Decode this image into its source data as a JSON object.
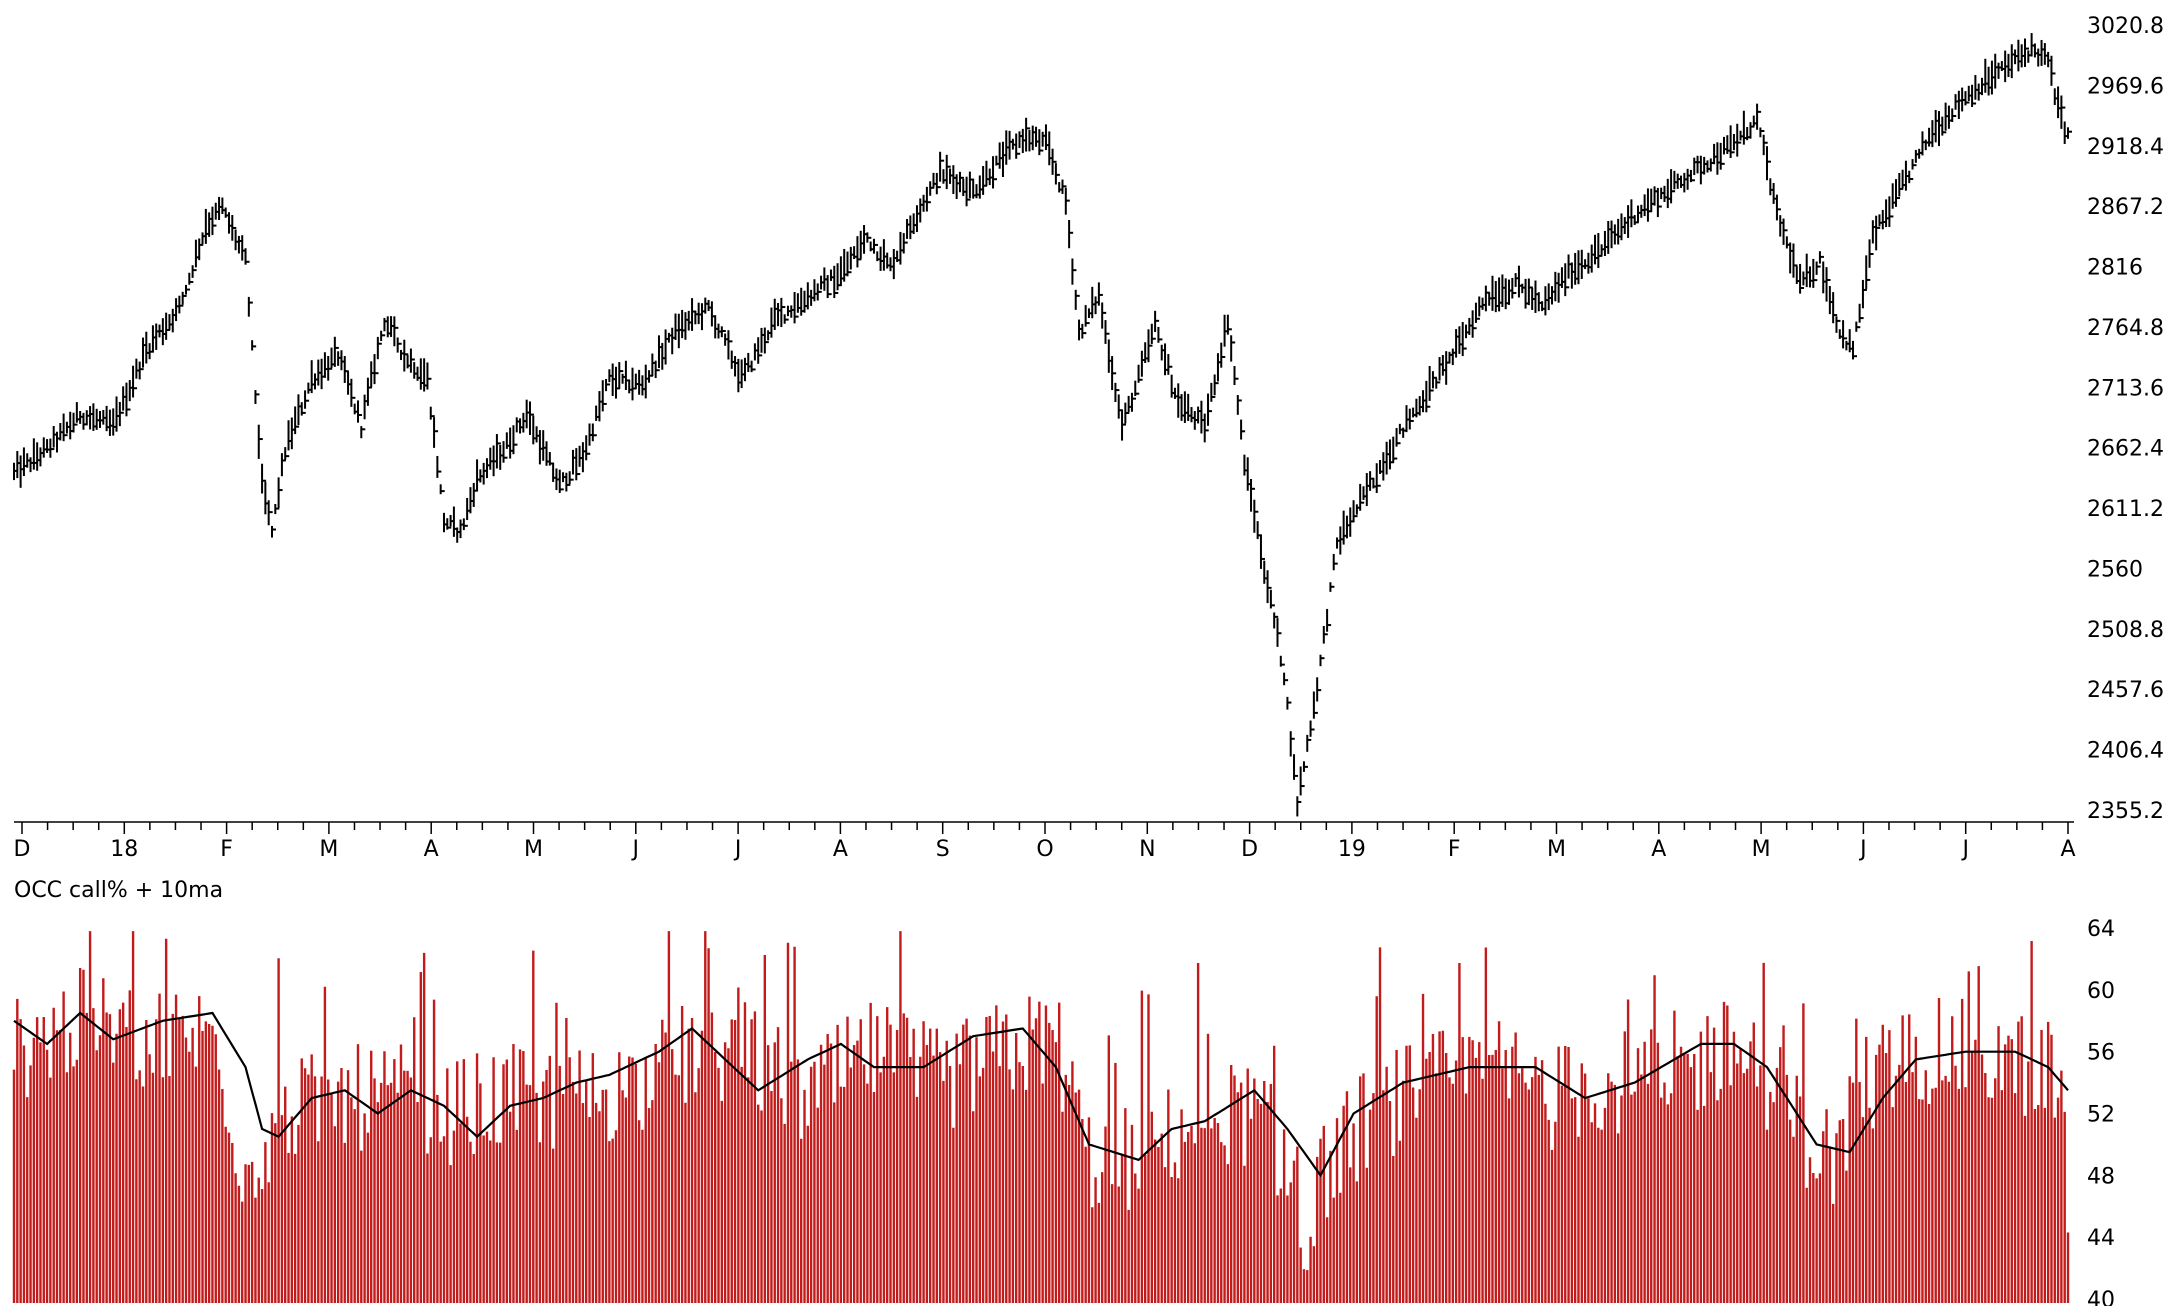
{
  "chart_data": [
    {
      "type": "ohlc",
      "series_sampling": "approximate daily highs/lows read from chart",
      "y_ticks": [
        "3020.8",
        "2969.6",
        "2918.4",
        "2867.2",
        "2816",
        "2764.8",
        "2713.6",
        "2662.4",
        "2611.2",
        "2560",
        "2508.8",
        "2457.6",
        "2406.4",
        "2355.2"
      ],
      "ylim": [
        2355.2,
        3020.8
      ],
      "x_month_labels": [
        "D",
        "18",
        "F",
        "M",
        "A",
        "M",
        "J",
        "J",
        "A",
        "S",
        "O",
        "N",
        "D",
        "19",
        "F",
        "M",
        "A",
        "M",
        "J",
        "J",
        "A"
      ],
      "keypoints": [
        [
          0,
          2640
        ],
        [
          10,
          2660
        ],
        [
          20,
          2690
        ],
        [
          30,
          2680
        ],
        [
          40,
          2745
        ],
        [
          50,
          2780
        ],
        [
          58,
          2850
        ],
        [
          63,
          2865
        ],
        [
          70,
          2820
        ],
        [
          75,
          2630
        ],
        [
          78,
          2590
        ],
        [
          82,
          2660
        ],
        [
          90,
          2720
        ],
        [
          98,
          2740
        ],
        [
          105,
          2680
        ],
        [
          112,
          2770
        ],
        [
          118,
          2740
        ],
        [
          125,
          2720
        ],
        [
          130,
          2600
        ],
        [
          135,
          2590
        ],
        [
          140,
          2635
        ],
        [
          148,
          2660
        ],
        [
          155,
          2690
        ],
        [
          165,
          2630
        ],
        [
          172,
          2655
        ],
        [
          180,
          2720
        ],
        [
          190,
          2715
        ],
        [
          200,
          2760
        ],
        [
          210,
          2780
        ],
        [
          220,
          2720
        ],
        [
          230,
          2770
        ],
        [
          240,
          2790
        ],
        [
          250,
          2810
        ],
        [
          258,
          2840
        ],
        [
          265,
          2815
        ],
        [
          272,
          2855
        ],
        [
          280,
          2895
        ],
        [
          290,
          2880
        ],
        [
          298,
          2905
        ],
        [
          305,
          2925
        ],
        [
          312,
          2920
        ],
        [
          318,
          2870
        ],
        [
          322,
          2760
        ],
        [
          328,
          2790
        ],
        [
          335,
          2680
        ],
        [
          340,
          2720
        ],
        [
          345,
          2765
        ],
        [
          352,
          2700
        ],
        [
          360,
          2680
        ],
        [
          367,
          2770
        ],
        [
          372,
          2650
        ],
        [
          378,
          2560
        ],
        [
          384,
          2470
        ],
        [
          388,
          2360
        ],
        [
          394,
          2460
        ],
        [
          400,
          2580
        ],
        [
          408,
          2620
        ],
        [
          416,
          2660
        ],
        [
          425,
          2700
        ],
        [
          435,
          2740
        ],
        [
          445,
          2790
        ],
        [
          455,
          2800
        ],
        [
          462,
          2780
        ],
        [
          470,
          2810
        ],
        [
          480,
          2830
        ],
        [
          490,
          2860
        ],
        [
          500,
          2880
        ],
        [
          510,
          2900
        ],
        [
          520,
          2920
        ],
        [
          527,
          2940
        ],
        [
          533,
          2860
        ],
        [
          540,
          2800
        ],
        [
          546,
          2820
        ],
        [
          552,
          2760
        ],
        [
          556,
          2745
        ],
        [
          562,
          2840
        ],
        [
          570,
          2880
        ],
        [
          580,
          2930
        ],
        [
          590,
          2960
        ],
        [
          600,
          2980
        ],
        [
          610,
          3000
        ],
        [
          615,
          2990
        ],
        [
          618,
          2950
        ],
        [
          621,
          2925
        ]
      ]
    },
    {
      "type": "bar+line",
      "title": "OCC call% + 10ma",
      "y_ticks": [
        "64",
        "60",
        "56",
        "52",
        "48",
        "44",
        "40"
      ],
      "ylim": [
        40,
        64
      ],
      "bars_keypoints": [
        [
          0,
          56
        ],
        [
          20,
          58
        ],
        [
          40,
          57
        ],
        [
          60,
          57
        ],
        [
          64,
          54
        ],
        [
          70,
          48
        ],
        [
          80,
          52
        ],
        [
          100,
          53
        ],
        [
          120,
          53
        ],
        [
          130,
          52
        ],
        [
          150,
          53
        ],
        [
          170,
          53
        ],
        [
          190,
          54
        ],
        [
          205,
          56
        ],
        [
          220,
          56
        ],
        [
          240,
          53
        ],
        [
          260,
          56
        ],
        [
          280,
          54
        ],
        [
          300,
          56
        ],
        [
          315,
          57
        ],
        [
          325,
          49
        ],
        [
          340,
          49
        ],
        [
          360,
          52
        ],
        [
          375,
          52
        ],
        [
          388,
          48
        ],
        [
          390,
          40.5
        ],
        [
          395,
          48
        ],
        [
          410,
          52
        ],
        [
          430,
          54
        ],
        [
          450,
          55
        ],
        [
          465,
          53
        ],
        [
          480,
          54
        ],
        [
          500,
          54
        ],
        [
          515,
          56
        ],
        [
          525,
          56
        ],
        [
          540,
          51
        ],
        [
          550,
          49
        ],
        [
          560,
          54
        ],
        [
          575,
          56
        ],
        [
          590,
          56
        ],
        [
          610,
          55
        ],
        [
          619,
          54
        ],
        [
          621,
          46
        ]
      ],
      "ma_keypoints": [
        [
          0,
          58
        ],
        [
          10,
          56.5
        ],
        [
          20,
          58.5
        ],
        [
          30,
          56.8
        ],
        [
          45,
          58
        ],
        [
          60,
          58.5
        ],
        [
          70,
          55
        ],
        [
          75,
          51
        ],
        [
          80,
          50.5
        ],
        [
          90,
          53
        ],
        [
          100,
          53.5
        ],
        [
          110,
          52
        ],
        [
          120,
          53.5
        ],
        [
          130,
          52.5
        ],
        [
          140,
          50.5
        ],
        [
          150,
          52.5
        ],
        [
          160,
          53
        ],
        [
          170,
          54
        ],
        [
          180,
          54.5
        ],
        [
          195,
          56
        ],
        [
          205,
          57.5
        ],
        [
          215,
          55.5
        ],
        [
          225,
          53.5
        ],
        [
          240,
          55.5
        ],
        [
          250,
          56.5
        ],
        [
          260,
          55
        ],
        [
          275,
          55
        ],
        [
          290,
          57
        ],
        [
          305,
          57.5
        ],
        [
          315,
          55
        ],
        [
          325,
          50
        ],
        [
          340,
          49
        ],
        [
          350,
          51
        ],
        [
          360,
          51.5
        ],
        [
          375,
          53.5
        ],
        [
          385,
          51
        ],
        [
          395,
          48
        ],
        [
          405,
          52
        ],
        [
          420,
          54
        ],
        [
          440,
          55
        ],
        [
          460,
          55
        ],
        [
          475,
          53
        ],
        [
          490,
          54
        ],
        [
          510,
          56.5
        ],
        [
          520,
          56.5
        ],
        [
          530,
          55
        ],
        [
          545,
          50
        ],
        [
          555,
          49.5
        ],
        [
          565,
          53
        ],
        [
          575,
          55.5
        ],
        [
          590,
          56
        ],
        [
          605,
          56
        ],
        [
          615,
          55
        ],
        [
          621,
          53.5
        ]
      ]
    }
  ]
}
